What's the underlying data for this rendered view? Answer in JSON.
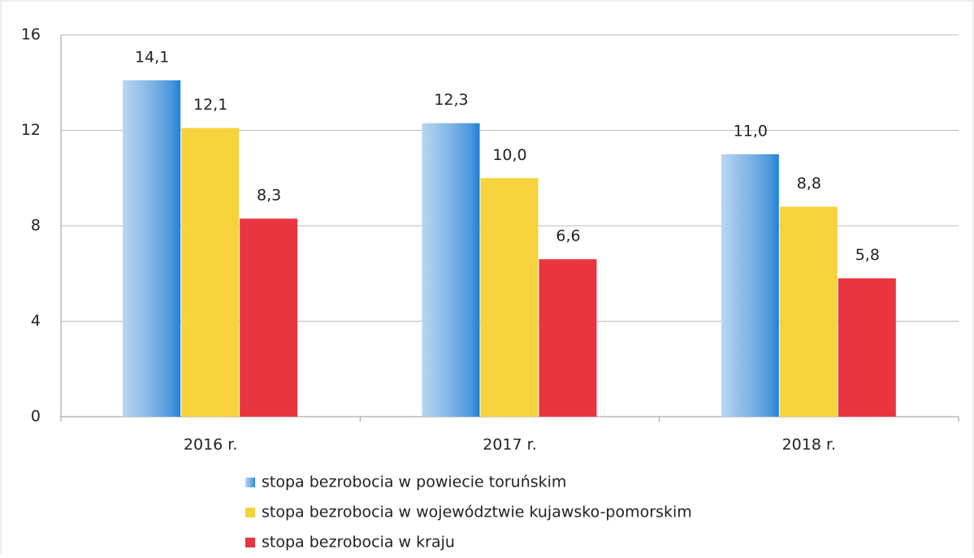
{
  "chart_data": {
    "type": "bar",
    "categories": [
      "2016 r.",
      "2017 r.",
      "2018 r."
    ],
    "series": [
      {
        "name": "stopa bezrobocia w powiecie toruńskim",
        "color": "#3b8fdb",
        "values": [
          14.1,
          12.3,
          11
        ],
        "value_labels": [
          "14,1",
          "12,3",
          "11,0"
        ]
      },
      {
        "name": "stopa bezrobocia w województwie kujawsko-pomorskim",
        "color": "#f6d23c",
        "values": [
          12.1,
          10,
          8.8
        ],
        "value_labels": [
          "12,1",
          "10,0",
          "8,8"
        ]
      },
      {
        "name": "stopa bezrobocia w kraju",
        "color": "#e9353f",
        "values": [
          8.3,
          6.6,
          5.8
        ],
        "value_labels": [
          "8,3",
          "6,6",
          "5,8"
        ]
      }
    ],
    "ylim": [
      0,
      16
    ],
    "yticks": [
      0,
      4,
      8,
      12,
      16
    ],
    "grid": true
  }
}
